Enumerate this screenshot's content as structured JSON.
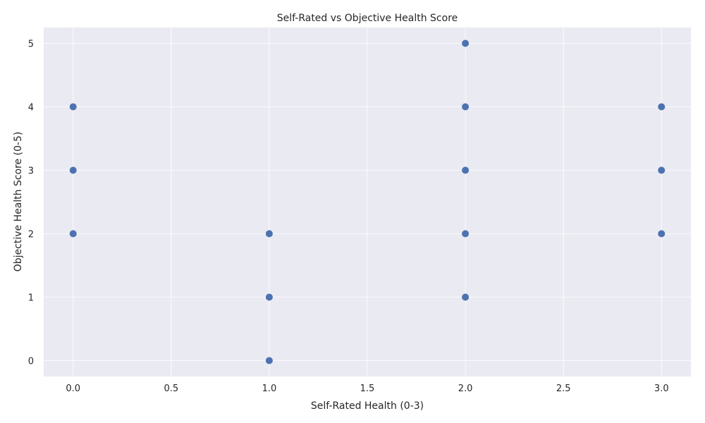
{
  "chart_data": {
    "type": "scatter",
    "title": "Self-Rated vs Objective Health Score",
    "xlabel": "Self-Rated Health (0-3)",
    "ylabel": "Objective Health Score (0-5)",
    "xlim": [
      -0.15,
      3.15
    ],
    "ylim": [
      -0.25,
      5.25
    ],
    "x_ticks": [
      0.0,
      0.5,
      1.0,
      1.5,
      2.0,
      2.5,
      3.0
    ],
    "x_tick_labels": [
      "0.0",
      "0.5",
      "1.0",
      "1.5",
      "2.0",
      "2.5",
      "3.0"
    ],
    "y_ticks": [
      0,
      1,
      2,
      3,
      4,
      5
    ],
    "y_tick_labels": [
      "0",
      "1",
      "2",
      "3",
      "4",
      "5"
    ],
    "grid": true,
    "colors": {
      "point": "#4c72b0",
      "plot_background": "#eaeaf2",
      "grid": "#ffffff"
    },
    "points": [
      {
        "x": 0,
        "y": 4
      },
      {
        "x": 0,
        "y": 3
      },
      {
        "x": 0,
        "y": 2
      },
      {
        "x": 1,
        "y": 2
      },
      {
        "x": 1,
        "y": 1
      },
      {
        "x": 1,
        "y": 0
      },
      {
        "x": 2,
        "y": 5
      },
      {
        "x": 2,
        "y": 4
      },
      {
        "x": 2,
        "y": 3
      },
      {
        "x": 2,
        "y": 2
      },
      {
        "x": 2,
        "y": 1
      },
      {
        "x": 3,
        "y": 4
      },
      {
        "x": 3,
        "y": 3
      },
      {
        "x": 3,
        "y": 2
      }
    ]
  }
}
